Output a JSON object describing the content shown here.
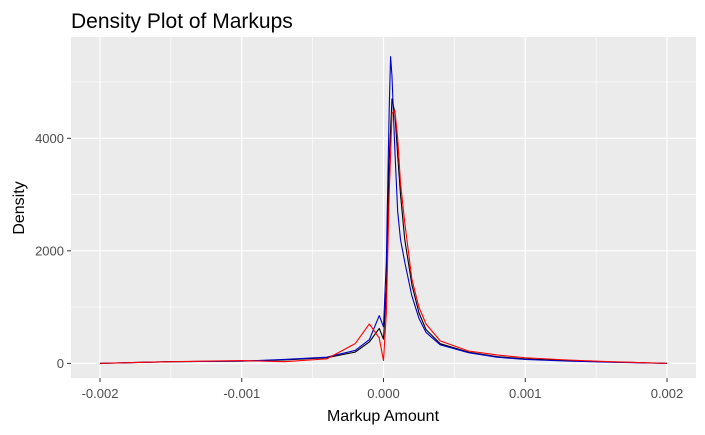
{
  "chart_data": {
    "type": "line",
    "title": "Density Plot of Markups",
    "xlabel": "Markup Amount",
    "ylabel": "Density",
    "xlim": [
      -0.002,
      0.002
    ],
    "ylim": [
      0,
      5600
    ],
    "x_ticks": [
      -0.002,
      -0.001,
      0.0,
      0.001,
      0.002
    ],
    "x_tick_labels": [
      "-0.002",
      "-0.001",
      "0.000",
      "0.001",
      "0.002"
    ],
    "y_ticks": [
      0,
      2000,
      4000
    ],
    "y_tick_labels": [
      "0",
      "2000",
      "4000"
    ],
    "grid": true,
    "panel_background": "#ebebeb",
    "grid_color": "#ffffff",
    "legend": "none",
    "series": [
      {
        "color": "#000000",
        "x": [
          -0.002,
          -0.0015,
          -0.001,
          -0.0007,
          -0.0004,
          -0.0002,
          -0.0001,
          -3e-05,
          0.0,
          2e-05,
          4e-05,
          6e-05,
          8e-05,
          0.0001,
          0.00012,
          0.00015,
          0.0002,
          0.00025,
          0.0003,
          0.0004,
          0.0006,
          0.0008,
          0.001,
          0.0013,
          0.0016,
          0.002
        ],
        "y": [
          0,
          30,
          40,
          60,
          100,
          200,
          380,
          620,
          430,
          1300,
          3600,
          4700,
          4450,
          3700,
          3000,
          2200,
          1400,
          900,
          600,
          350,
          200,
          120,
          80,
          50,
          25,
          0
        ]
      },
      {
        "color": "#0000cc",
        "x": [
          -0.002,
          -0.0015,
          -0.001,
          -0.0007,
          -0.0004,
          -0.0002,
          -0.0001,
          -3e-05,
          0.0,
          2e-05,
          4e-05,
          5e-05,
          6e-05,
          8e-05,
          0.0001,
          0.00012,
          0.00015,
          0.0002,
          0.00025,
          0.0003,
          0.0004,
          0.0006,
          0.0008,
          0.001,
          0.0013,
          0.0016,
          0.002
        ],
        "y": [
          0,
          30,
          40,
          70,
          110,
          230,
          420,
          850,
          650,
          1800,
          4500,
          5450,
          5100,
          3800,
          2700,
          2200,
          1800,
          1200,
          800,
          550,
          330,
          190,
          110,
          70,
          40,
          20,
          0
        ]
      },
      {
        "color": "#ff0000",
        "x": [
          -0.002,
          -0.0015,
          -0.001,
          -0.0007,
          -0.0004,
          -0.0002,
          -0.0001,
          -3e-05,
          0.0,
          2e-05,
          4e-05,
          6e-05,
          8e-05,
          0.0001,
          0.00012,
          0.00015,
          0.0002,
          0.00025,
          0.0003,
          0.0004,
          0.0006,
          0.0008,
          0.001,
          0.0013,
          0.0016,
          0.002
        ],
        "y": [
          0,
          30,
          50,
          30,
          80,
          350,
          700,
          450,
          50,
          900,
          3000,
          4450,
          4500,
          4000,
          3200,
          2500,
          1500,
          1000,
          700,
          400,
          220,
          150,
          100,
          60,
          30,
          0
        ]
      }
    ]
  }
}
